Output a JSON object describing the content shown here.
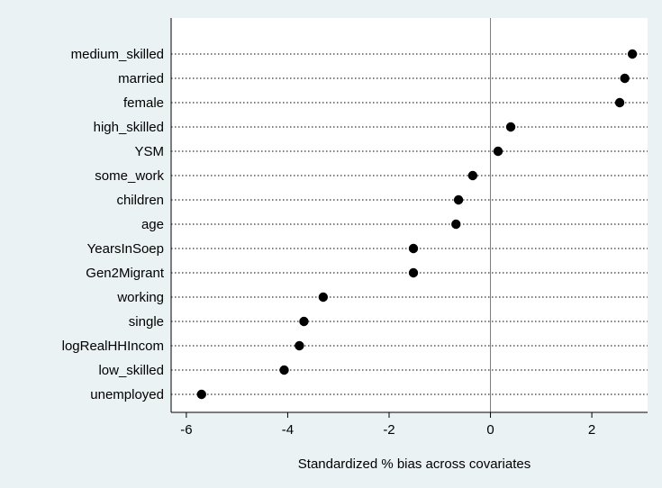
{
  "colors": {
    "background": "#eaf2f3",
    "plot_background": "#ffffff",
    "marker": "#000000",
    "reference_line": "#7a7a7a"
  },
  "chart_data": {
    "type": "scatter",
    "orientation": "horizontal-dot-plot",
    "title": "",
    "xlabel": "Standardized % bias across covariates",
    "ylabel": "",
    "xlim": [
      -6.3,
      3.1
    ],
    "xticks": [
      -6,
      -4,
      -2,
      0,
      2
    ],
    "xtick_labels": [
      "-6",
      "-4",
      "-2",
      "0",
      "2"
    ],
    "reference_line_x": 0,
    "grid": false,
    "legend": "none",
    "categories": [
      "medium_skilled",
      "married",
      "female",
      "high_skilled",
      "YSM",
      "some_work",
      "children",
      "age",
      "YearsInSoep",
      "Gen2Migrant",
      "working",
      "single",
      "logRealHHIncom",
      "low_skilled",
      "unemployed"
    ],
    "values": [
      2.8,
      2.65,
      2.55,
      0.4,
      0.15,
      -0.35,
      -0.63,
      -0.68,
      -1.52,
      -1.52,
      -3.3,
      -3.68,
      -3.77,
      -4.07,
      -5.7
    ]
  }
}
